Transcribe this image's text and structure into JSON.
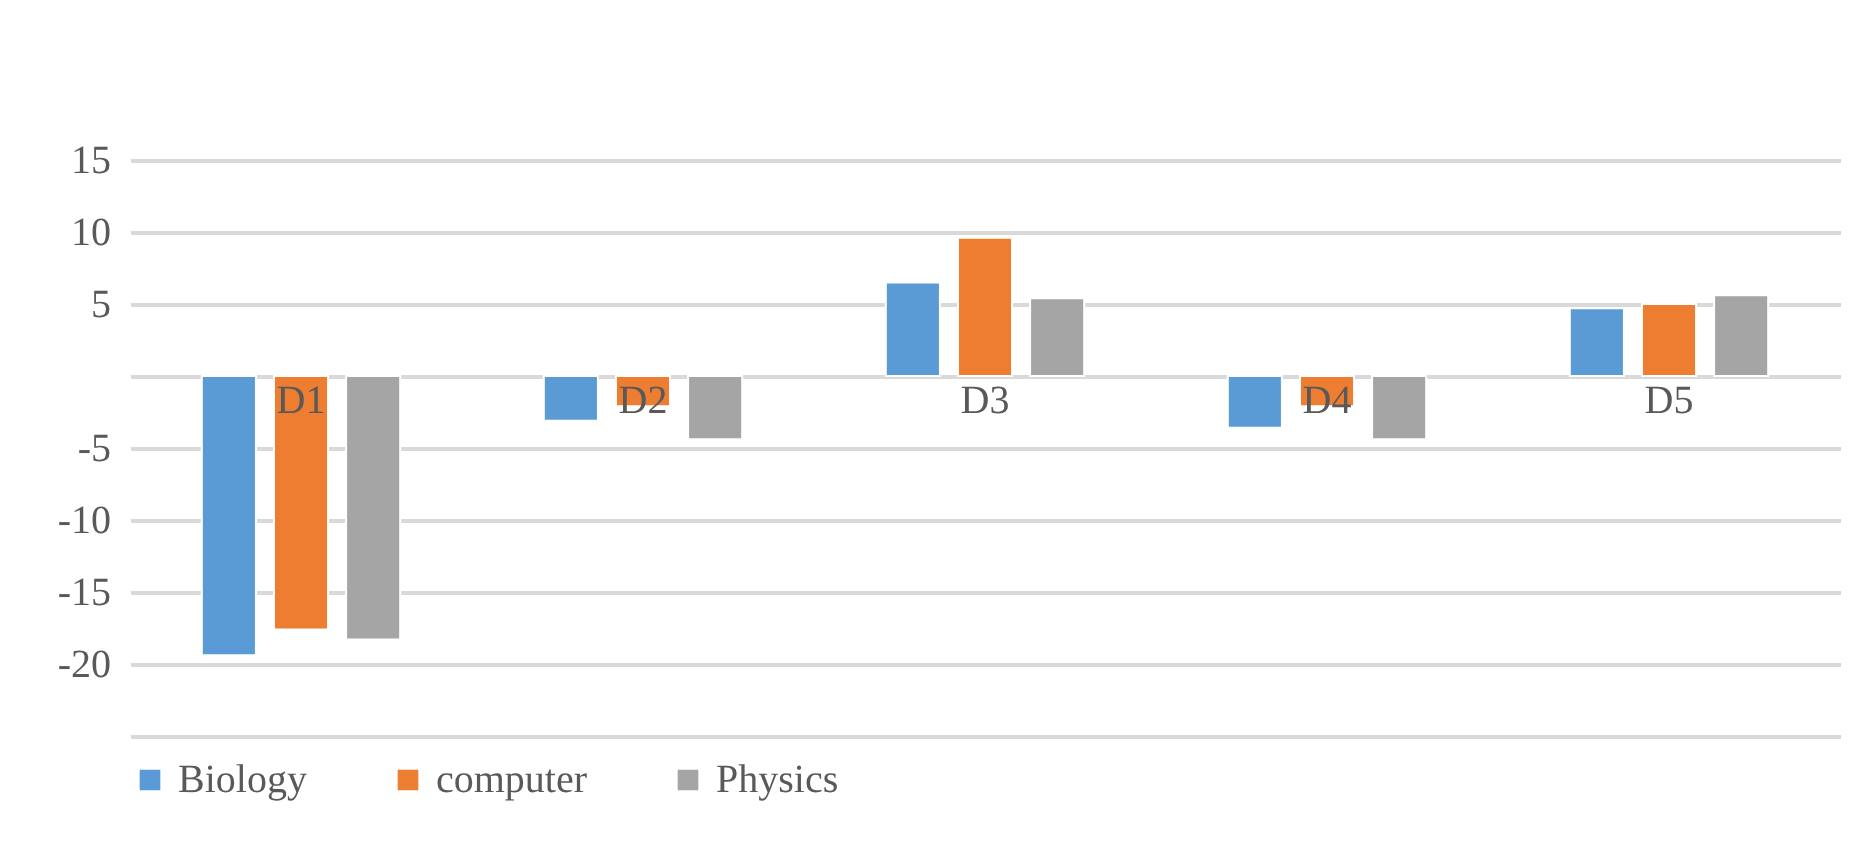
{
  "chart_data": {
    "type": "bar",
    "categories": [
      "D1",
      "D2",
      "D3",
      "D4",
      "D5"
    ],
    "series": [
      {
        "name": "Biology",
        "color": "#5b9bd5",
        "values": [
          -19.4,
          -3.1,
          6.5,
          -3.6,
          4.7
        ]
      },
      {
        "name": "computer",
        "color": "#ed7d31",
        "values": [
          -17.6,
          -2.1,
          9.6,
          -2.1,
          5.0
        ]
      },
      {
        "name": "Physics",
        "color": "#a5a5a5",
        "values": [
          -18.3,
          -4.4,
          5.4,
          -4.4,
          5.6
        ]
      }
    ],
    "ylim": [
      -25,
      15
    ],
    "yticks": [
      15,
      10,
      5,
      {
        "value": 0,
        "label": null
      },
      -5,
      -10,
      -15,
      -20,
      {
        "value": -25,
        "label": null
      }
    ],
    "grid": "y",
    "legend": "bottom"
  }
}
